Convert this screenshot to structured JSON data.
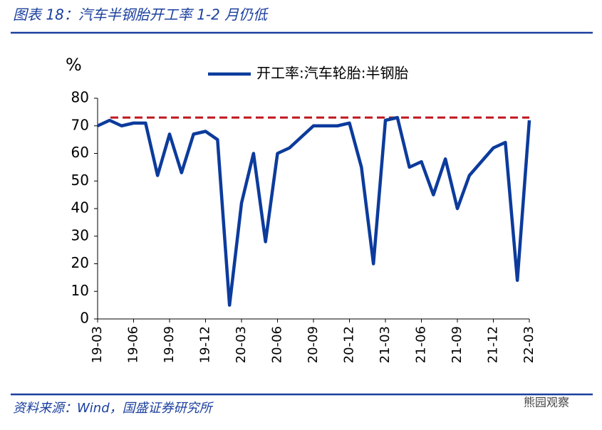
{
  "header": {
    "title": "图表 18：汽车半钢胎开工率 1-2 月仍低"
  },
  "chart_data": {
    "type": "line",
    "y_unit": "%",
    "categories": [
      "19-03",
      null,
      null,
      "19-06",
      null,
      null,
      "19-09",
      null,
      null,
      "19-12",
      null,
      null,
      "20-03",
      null,
      null,
      "20-06",
      null,
      null,
      "20-09",
      null,
      null,
      "20-12",
      null,
      null,
      "21-03",
      null,
      null,
      "21-06",
      null,
      null,
      "21-09",
      null,
      null,
      "21-12",
      null,
      null,
      "22-03"
    ],
    "series": [
      {
        "name": "开工率:汽车轮胎:半钢胎",
        "color": "#0c3b9c",
        "values": [
          70,
          72,
          70,
          71,
          71,
          52,
          67,
          53,
          67,
          68,
          65,
          5,
          42,
          60,
          28,
          60,
          62,
          66,
          70,
          70,
          70,
          71,
          55,
          20,
          72,
          73,
          55,
          57,
          45,
          58,
          40,
          52,
          57,
          62,
          64,
          14,
          72
        ]
      }
    ],
    "reference_line": {
      "value": 73,
      "color": "#c0161d"
    },
    "ylim": [
      0,
      80
    ],
    "yticks": [
      0,
      10,
      20,
      30,
      40,
      50,
      60,
      70,
      80
    ],
    "legend": "top"
  },
  "footer": {
    "source": "资料来源：Wind，国盛证券研究所",
    "watermark": "熊园观察"
  }
}
